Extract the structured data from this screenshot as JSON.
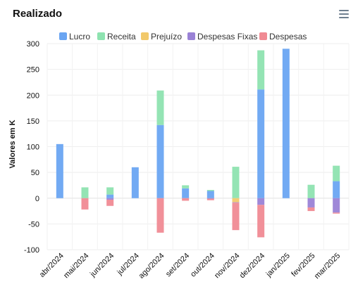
{
  "header": {
    "title": "Realizado",
    "menu_icon": "hamburger-menu-icon"
  },
  "chart_data": {
    "type": "bar",
    "stacked": true,
    "categories": [
      "abr/2024",
      "mai/2024",
      "jun/2024",
      "jul/2024",
      "ago/2024",
      "set/2024",
      "out/2024",
      "nov/2024",
      "dez/2024",
      "jan/2025",
      "fev/2025",
      "mar/2025"
    ],
    "series": [
      {
        "name": "Lucro",
        "color": "#6aa5f2",
        "values": [
          105,
          0,
          7,
          60,
          142,
          19,
          14,
          0,
          211,
          290,
          0,
          33
        ]
      },
      {
        "name": "Receita",
        "color": "#8ee3b0",
        "values": [
          0,
          21,
          14,
          0,
          67,
          6,
          2,
          61,
          76,
          0,
          26,
          30
        ]
      },
      {
        "name": "Prejuízo",
        "color": "#f2c96b",
        "values": [
          0,
          0,
          0,
          0,
          0,
          0,
          0,
          -8,
          0,
          0,
          0,
          0
        ]
      },
      {
        "name": "Despesas Fixas",
        "color": "#9a82d6",
        "values": [
          0,
          0,
          -3,
          0,
          0,
          0,
          -1,
          -1,
          -13,
          0,
          -18,
          -28
        ]
      },
      {
        "name": "Despesas",
        "color": "#f08a93",
        "values": [
          0,
          -22,
          -12,
          0,
          -67,
          -5,
          -3,
          -53,
          -63,
          0,
          -7,
          -2
        ]
      }
    ],
    "ylabel": "Valores em K",
    "xlabel": "",
    "ylim": [
      -100,
      300
    ],
    "yticks": [
      -100,
      -50,
      0,
      50,
      100,
      150,
      200,
      250,
      300
    ],
    "grid": true,
    "legend_position": "top"
  }
}
